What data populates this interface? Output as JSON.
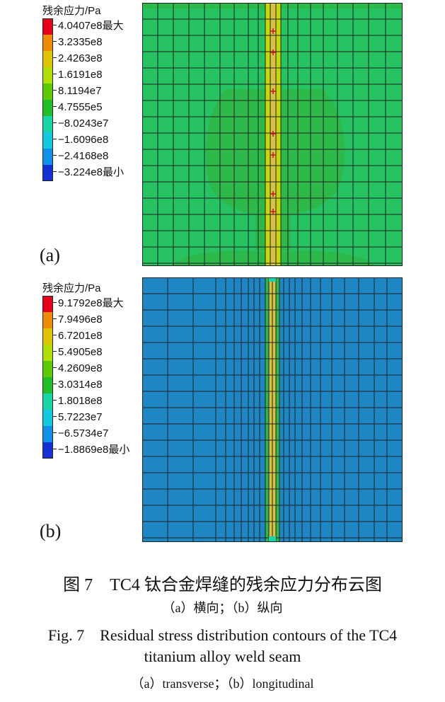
{
  "panel_a": {
    "letter": "(a)",
    "legend": {
      "title": "残余应力/Pa",
      "items": [
        {
          "label": "4.0407e8最大",
          "color": "#e8001a"
        },
        {
          "label": "3.2335e8",
          "color": "#f08a00"
        },
        {
          "label": "2.4263e8",
          "color": "#e0c400"
        },
        {
          "label": "1.6191e8",
          "color": "#b0e000"
        },
        {
          "label": "8.1194e7",
          "color": "#5ccc00"
        },
        {
          "label": "4.7555e5",
          "color": "#1fbf2a"
        },
        {
          "label": "−8.0243e7",
          "color": "#16d6a8"
        },
        {
          "label": "−1.6096e8",
          "color": "#12c9e0"
        },
        {
          "label": "−2.4168e8",
          "color": "#1090e8"
        },
        {
          "label": "−3.224e8最小",
          "color": "#1630d8"
        }
      ]
    }
  },
  "panel_b": {
    "letter": "(b)",
    "legend": {
      "title": "残余应力/Pa",
      "items": [
        {
          "label": "9.1792e8最大",
          "color": "#e8001a"
        },
        {
          "label": "7.9496e8",
          "color": "#f08a00"
        },
        {
          "label": "6.7201e8",
          "color": "#e0c400"
        },
        {
          "label": "5.4905e8",
          "color": "#b0e000"
        },
        {
          "label": "4.2609e8",
          "color": "#5ccc00"
        },
        {
          "label": "3.0314e8",
          "color": "#1fbf2a"
        },
        {
          "label": "1.8018e8",
          "color": "#16d6a8"
        },
        {
          "label": "5.7223e7",
          "color": "#12c9e0"
        },
        {
          "label": "−6.5734e7",
          "color": "#1090e8"
        },
        {
          "label": "−1.8869e8最小",
          "color": "#1630d8"
        }
      ]
    }
  },
  "caption": {
    "cn_title": "图 7　TC4 钛合金焊缝的残余应力分布云图",
    "cn_sub": "（a）横向；（b）纵向",
    "en_title_1": "Fig. 7　Residual stress distribution contours of the TC4",
    "en_title_2": "titanium alloy weld seam",
    "en_sub": "（a）transverse；（b）longitudinal"
  }
}
